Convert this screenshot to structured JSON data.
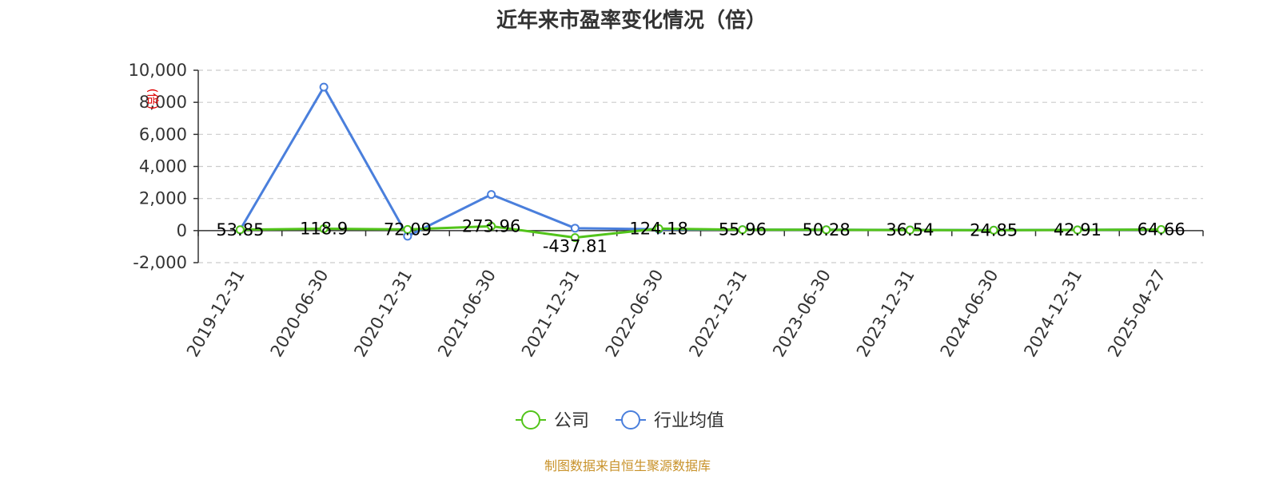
{
  "chart_data": {
    "type": "line",
    "title": "近年来市盈率变化情况（倍）",
    "unit_label": "(倍)",
    "categories": [
      "2019-12-31",
      "2020-06-30",
      "2020-12-31",
      "2021-06-30",
      "2021-12-31",
      "2022-06-30",
      "2022-12-31",
      "2023-06-30",
      "2023-12-31",
      "2024-06-30",
      "2024-12-31",
      "2025-04-27"
    ],
    "ylim": [
      -2000,
      10000
    ],
    "yticks": [
      -2000,
      0,
      2000,
      4000,
      6000,
      8000,
      10000
    ],
    "ytick_labels": [
      "-2,000",
      "0",
      "2,000",
      "4,000",
      "6,000",
      "8,000",
      "10,000"
    ],
    "grid": true,
    "legend_position": "bottom",
    "series": [
      {
        "name": "公司",
        "color": "#52c41a",
        "values": [
          53.85,
          118.9,
          72.09,
          273.96,
          -437.81,
          124.18,
          55.96,
          50.28,
          36.54,
          24.85,
          42.91,
          64.66
        ],
        "data_labels": [
          "53.85",
          "118.9",
          "72.09",
          "273.96",
          "-437.81",
          "124.18",
          "55.96",
          "50.28",
          "36.54",
          "24.85",
          "42.91",
          "64.66"
        ]
      },
      {
        "name": "行业均值",
        "color": "#4a7fdc",
        "values": [
          50,
          8950,
          -350,
          2250,
          150,
          80,
          60,
          55,
          40,
          30,
          45,
          60
        ]
      }
    ]
  },
  "source": "制图数据来自恒生聚源数据库"
}
